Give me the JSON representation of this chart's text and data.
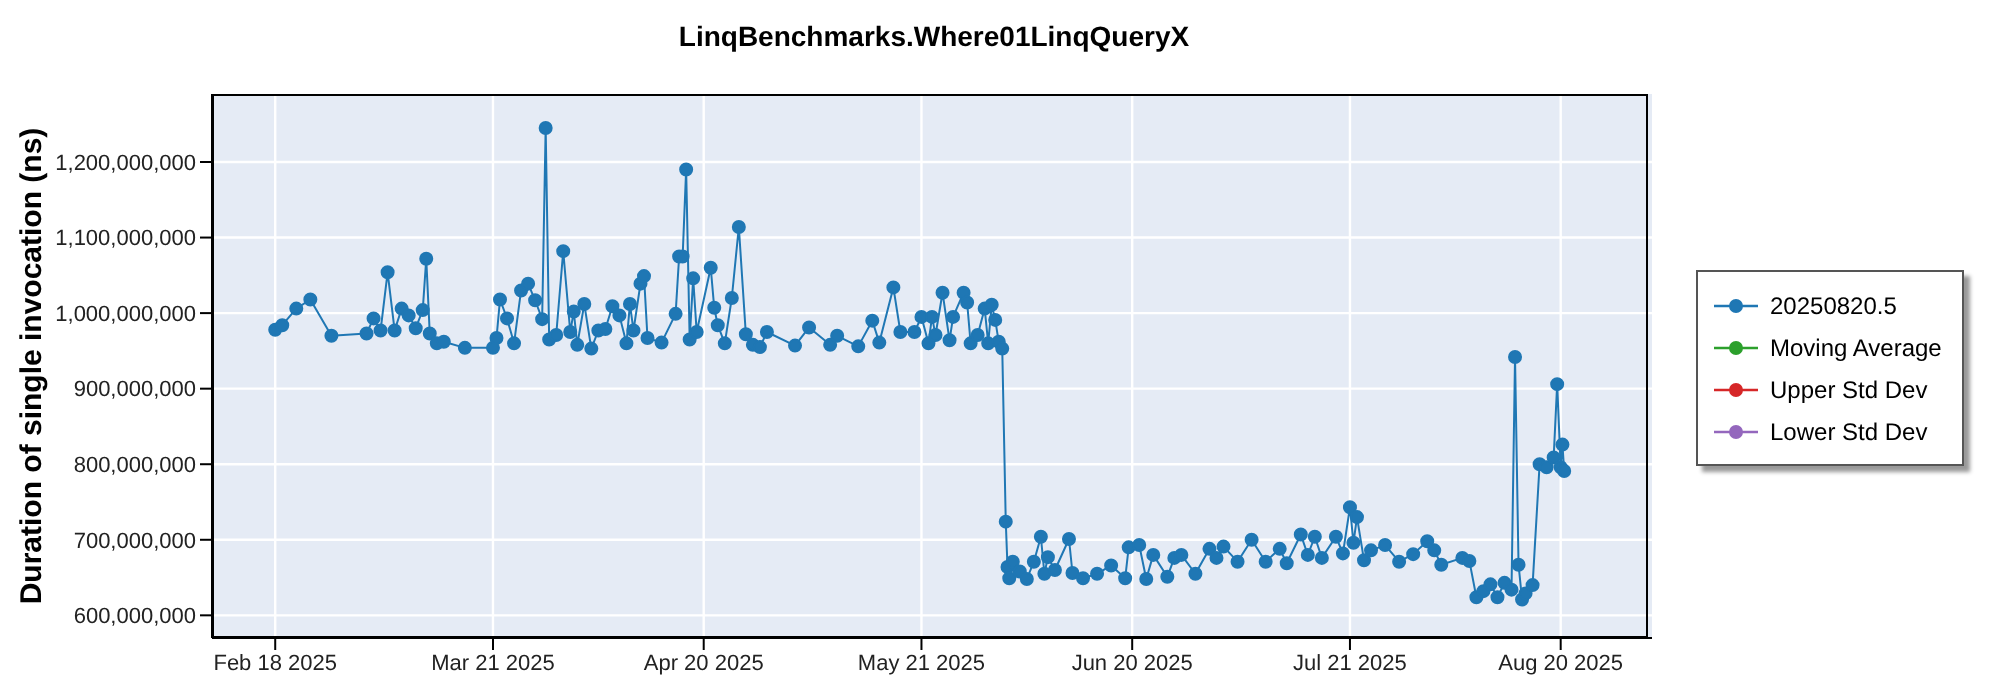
{
  "chart_data": {
    "type": "line",
    "title": "LinqBenchmarks.Where01LinqQueryX",
    "ylabel": "Duration of single invocation (ns)",
    "xlim": [
      "2025-02-09",
      "2025-09-02"
    ],
    "xticks": [
      {
        "value": "2025-02-18",
        "label": "Feb 18 2025"
      },
      {
        "value": "2025-03-21",
        "label": "Mar 21 2025"
      },
      {
        "value": "2025-04-20",
        "label": "Apr 20 2025"
      },
      {
        "value": "2025-05-21",
        "label": "May 21 2025"
      },
      {
        "value": "2025-06-20",
        "label": "Jun 20 2025"
      },
      {
        "value": "2025-07-21",
        "label": "Jul 21 2025"
      },
      {
        "value": "2025-08-20",
        "label": "Aug 20 2025"
      }
    ],
    "ylim": [
      570000000,
      1290000000
    ],
    "yticks": [
      {
        "value": 600000000,
        "label": "600,000,000"
      },
      {
        "value": 700000000,
        "label": "700,000,000"
      },
      {
        "value": 800000000,
        "label": "800,000,000"
      },
      {
        "value": 900000000,
        "label": "900,000,000"
      },
      {
        "value": 1000000000,
        "label": "1,000,000,000"
      },
      {
        "value": 1100000000,
        "label": "1,100,000,000"
      },
      {
        "value": 1200000000,
        "label": "1,200,000,000"
      }
    ],
    "grid": true,
    "legend": "right",
    "marker": "circle",
    "line_style": "solid",
    "series": [
      {
        "name": "20250820.5",
        "color": "#1f77b4",
        "x": [
          "2025-02-18",
          "2025-02-19",
          "2025-02-21",
          "2025-02-23",
          "2025-02-26",
          "2025-03-03",
          "2025-03-04",
          "2025-03-05",
          "2025-03-06",
          "2025-03-07",
          "2025-03-08",
          "2025-03-09",
          "2025-03-10",
          "2025-03-11",
          "2025-03-11T12:00",
          "2025-03-12",
          "2025-03-13",
          "2025-03-14",
          "2025-03-17",
          "2025-03-21",
          "2025-03-21T12:00",
          "2025-03-22",
          "2025-03-23",
          "2025-03-24",
          "2025-03-25",
          "2025-03-26",
          "2025-03-27",
          "2025-03-28",
          "2025-03-28T12:00",
          "2025-03-29",
          "2025-03-30",
          "2025-03-31",
          "2025-04-01",
          "2025-04-01T12:00",
          "2025-04-02",
          "2025-04-03",
          "2025-04-04",
          "2025-04-05",
          "2025-04-06",
          "2025-04-07",
          "2025-04-08",
          "2025-04-09",
          "2025-04-09T12:00",
          "2025-04-10",
          "2025-04-11",
          "2025-04-11T12:00",
          "2025-04-12",
          "2025-04-14",
          "2025-04-16",
          "2025-04-16T12:00",
          "2025-04-17",
          "2025-04-17T12:00",
          "2025-04-18",
          "2025-04-18T12:00",
          "2025-04-19",
          "2025-04-21",
          "2025-04-21T12:00",
          "2025-04-22",
          "2025-04-23",
          "2025-04-24",
          "2025-04-25",
          "2025-04-26",
          "2025-04-27",
          "2025-04-28",
          "2025-04-29",
          "2025-05-03",
          "2025-05-05",
          "2025-05-08",
          "2025-05-09",
          "2025-05-12",
          "2025-05-14",
          "2025-05-15",
          "2025-05-17",
          "2025-05-18",
          "2025-05-20",
          "2025-05-21",
          "2025-05-22",
          "2025-05-22T12:00",
          "2025-05-23",
          "2025-05-24",
          "2025-05-25",
          "2025-05-25T12:00",
          "2025-05-27",
          "2025-05-27T12:00",
          "2025-05-28",
          "2025-05-29",
          "2025-05-30",
          "2025-05-30T12:00",
          "2025-05-31",
          "2025-05-31T12:00",
          "2025-06-01",
          "2025-06-01T12:00",
          "2025-06-02",
          "2025-06-02T06:00",
          "2025-06-02T12:00",
          "2025-06-03",
          "2025-06-04",
          "2025-06-05",
          "2025-06-06",
          "2025-06-07",
          "2025-06-07T12:00",
          "2025-06-08",
          "2025-06-09",
          "2025-06-11",
          "2025-06-11T12:00",
          "2025-06-13",
          "2025-06-15",
          "2025-06-17",
          "2025-06-19",
          "2025-06-19T12:00",
          "2025-06-21",
          "2025-06-22",
          "2025-06-23",
          "2025-06-25",
          "2025-06-26",
          "2025-06-27",
          "2025-06-29",
          "2025-07-01",
          "2025-07-02",
          "2025-07-03",
          "2025-07-05",
          "2025-07-07",
          "2025-07-09",
          "2025-07-11",
          "2025-07-12",
          "2025-07-14",
          "2025-07-15",
          "2025-07-16",
          "2025-07-17",
          "2025-07-19",
          "2025-07-20",
          "2025-07-21",
          "2025-07-21T12:00",
          "2025-07-22",
          "2025-07-23",
          "2025-07-24",
          "2025-07-26",
          "2025-07-28",
          "2025-07-30",
          "2025-08-01",
          "2025-08-02",
          "2025-08-03",
          "2025-08-06",
          "2025-08-07",
          "2025-08-08",
          "2025-08-09",
          "2025-08-10",
          "2025-08-11",
          "2025-08-12",
          "2025-08-13",
          "2025-08-13T12:00",
          "2025-08-14",
          "2025-08-14T12:00",
          "2025-08-15",
          "2025-08-16",
          "2025-08-17",
          "2025-08-18",
          "2025-08-19",
          "2025-08-19T12:00",
          "2025-08-20",
          "2025-08-20T06:00",
          "2025-08-20T12:00"
        ],
        "values": [
          978000000,
          984000000,
          1006000000,
          1018000000,
          970000000,
          973000000,
          993000000,
          977000000,
          1054000000,
          977000000,
          1006000000,
          997000000,
          980000000,
          1004000000,
          1072000000,
          973000000,
          960000000,
          962000000,
          954000000,
          954000000,
          967000000,
          1018000000,
          993000000,
          960000000,
          1030000000,
          1039000000,
          1017000000,
          992000000,
          1245000000,
          965000000,
          971000000,
          1082000000,
          975000000,
          1002000000,
          958000000,
          1012000000,
          953000000,
          977000000,
          979000000,
          1009000000,
          997000000,
          960000000,
          1012000000,
          977000000,
          1039000000,
          1049000000,
          967000000,
          961000000,
          999000000,
          1075000000,
          1075000000,
          1190000000,
          965000000,
          1046000000,
          975000000,
          1060000000,
          1007000000,
          984000000,
          960000000,
          1020000000,
          1114000000,
          972000000,
          958000000,
          955000000,
          975000000,
          957000000,
          981000000,
          958000000,
          970000000,
          956000000,
          990000000,
          961000000,
          1034000000,
          975000000,
          975000000,
          995000000,
          960000000,
          995000000,
          971000000,
          1027000000,
          964000000,
          995000000,
          1027000000,
          1014000000,
          960000000,
          971000000,
          1006000000,
          960000000,
          1011000000,
          991000000,
          962000000,
          953000000,
          724000000,
          664000000,
          649000000,
          671000000,
          658000000,
          648000000,
          671000000,
          704000000,
          655000000,
          677000000,
          660000000,
          701000000,
          656000000,
          649000000,
          655000000,
          666000000,
          649000000,
          690000000,
          693000000,
          648000000,
          680000000,
          651000000,
          676000000,
          680000000,
          655000000,
          688000000,
          676000000,
          691000000,
          671000000,
          700000000,
          671000000,
          688000000,
          669000000,
          707000000,
          680000000,
          704000000,
          676000000,
          704000000,
          682000000,
          743000000,
          696000000,
          730000000,
          673000000,
          686000000,
          693000000,
          671000000,
          681000000,
          698000000,
          686000000,
          667000000,
          676000000,
          672000000,
          624000000,
          632000000,
          641000000,
          624000000,
          643000000,
          634000000,
          942000000,
          667000000,
          621000000,
          629000000,
          640000000,
          800000000,
          796000000,
          809000000,
          906000000,
          796000000,
          826000000,
          791000000
        ]
      },
      {
        "name": "Moving Average",
        "color": "#2ca02c"
      },
      {
        "name": "Upper Std Dev",
        "color": "#d62728"
      },
      {
        "name": "Lower Std Dev",
        "color": "#9467bd"
      }
    ]
  }
}
